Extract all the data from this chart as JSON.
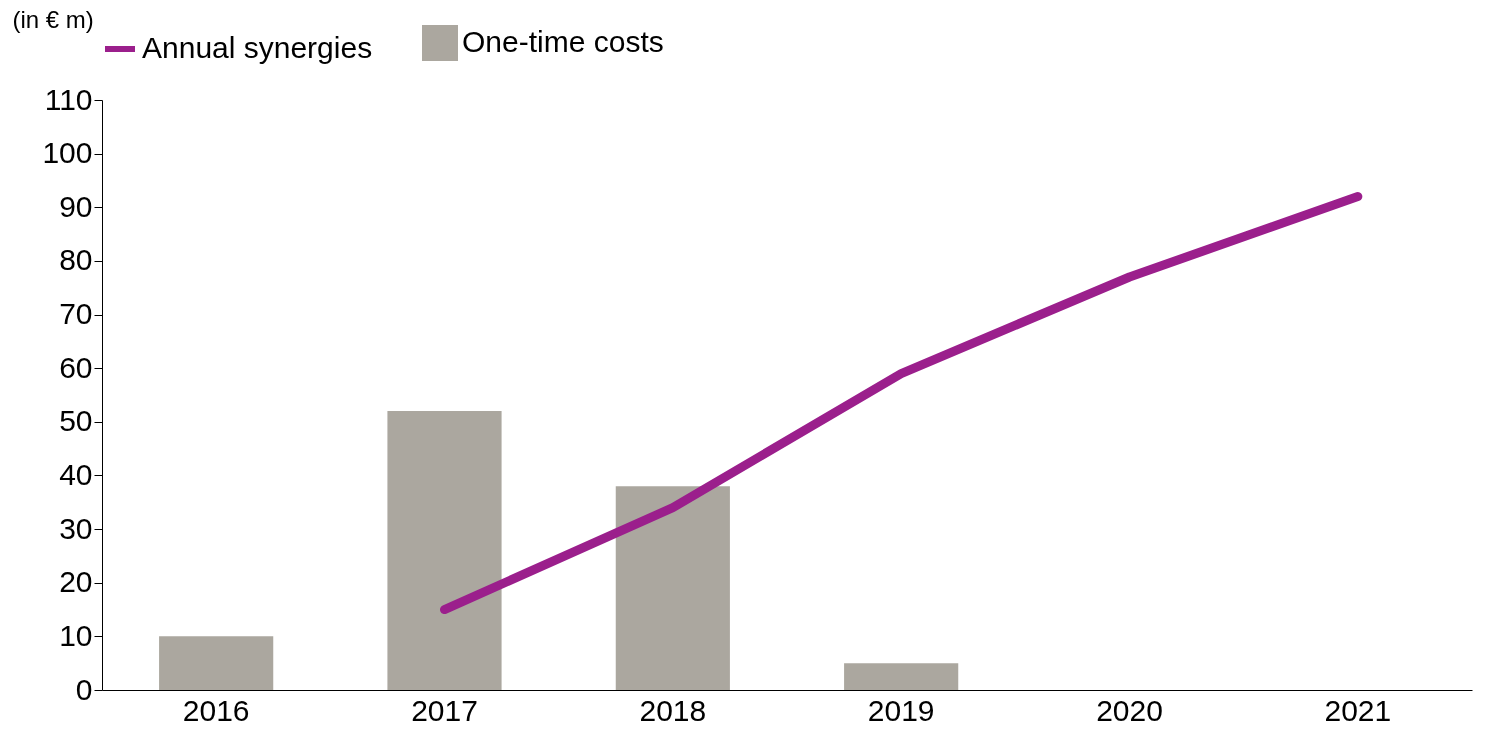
{
  "chart_data": {
    "type": "bar",
    "ylabel": "(in € m)",
    "categories": [
      "2016",
      "2017",
      "2018",
      "2019",
      "2020",
      "2021"
    ],
    "series": [
      {
        "name": "Annual synergies",
        "type": "line",
        "color": "#9b1f8c",
        "values": [
          null,
          15,
          34,
          59,
          77,
          92
        ]
      },
      {
        "name": "One-time costs",
        "color": "#aba79f",
        "values": [
          10,
          52,
          38,
          5,
          null,
          null
        ]
      }
    ],
    "ylim": [
      0,
      110
    ],
    "yticks": [
      0,
      10,
      20,
      30,
      40,
      50,
      60,
      70,
      80,
      90,
      100,
      110
    ],
    "grid": false,
    "legend": "top left"
  }
}
